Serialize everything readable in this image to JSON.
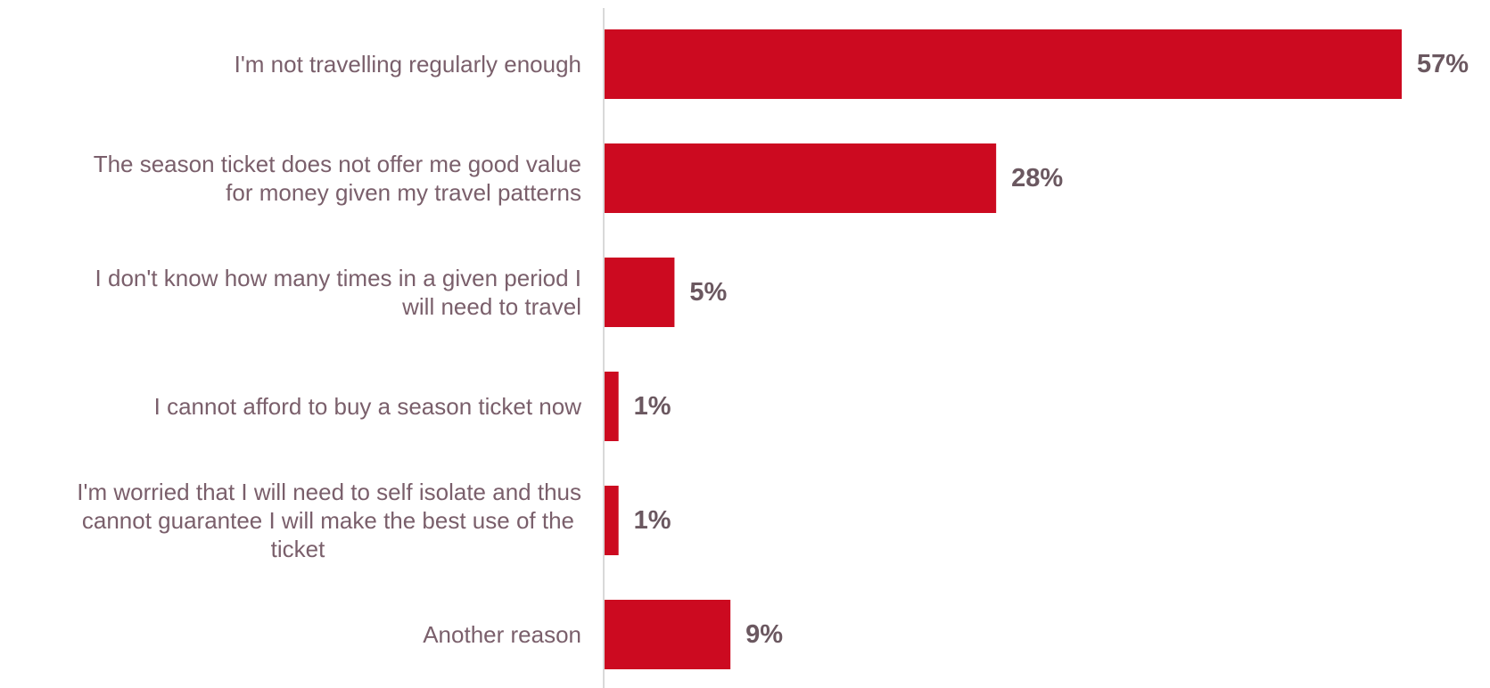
{
  "chart_data": {
    "type": "bar",
    "orientation": "horizontal",
    "categories": [
      "I'm not travelling regularly enough",
      "The season ticket does not offer me good value for money given my travel patterns",
      "I don't know how many times in a given period I will need to travel",
      "I cannot afford to buy a season ticket now",
      "I'm worried that I will need to self isolate and thus cannot guarantee I will make the best use of the ticket",
      "Another reason"
    ],
    "category_lines": [
      [
        "I'm not travelling regularly enough"
      ],
      [
        "The season ticket does not offer me good value",
        "for money given my travel patterns"
      ],
      [
        "I don't know how many times in a given period I",
        "will need to travel"
      ],
      [
        "I cannot afford to buy a season ticket now"
      ],
      [
        "I'm worried that I will need to self isolate and thus",
        "cannot guarantee I will make the best use of the",
        "ticket"
      ],
      [
        "Another reason"
      ]
    ],
    "values": [
      57,
      28,
      5,
      1,
      1,
      9
    ],
    "data_labels": [
      "57%",
      "28%",
      "5%",
      "1%",
      "1%",
      "9%"
    ],
    "unit": "%",
    "xlim": [
      0,
      57
    ],
    "grid": false,
    "legend": "none",
    "title": "",
    "xlabel": "",
    "ylabel": ""
  },
  "colors": {
    "bar": "#cc0a20",
    "category_text": "#7a5f6b",
    "value_text": "#6b5860",
    "axis_line": "#d9d9d9",
    "background": "#ffffff"
  }
}
